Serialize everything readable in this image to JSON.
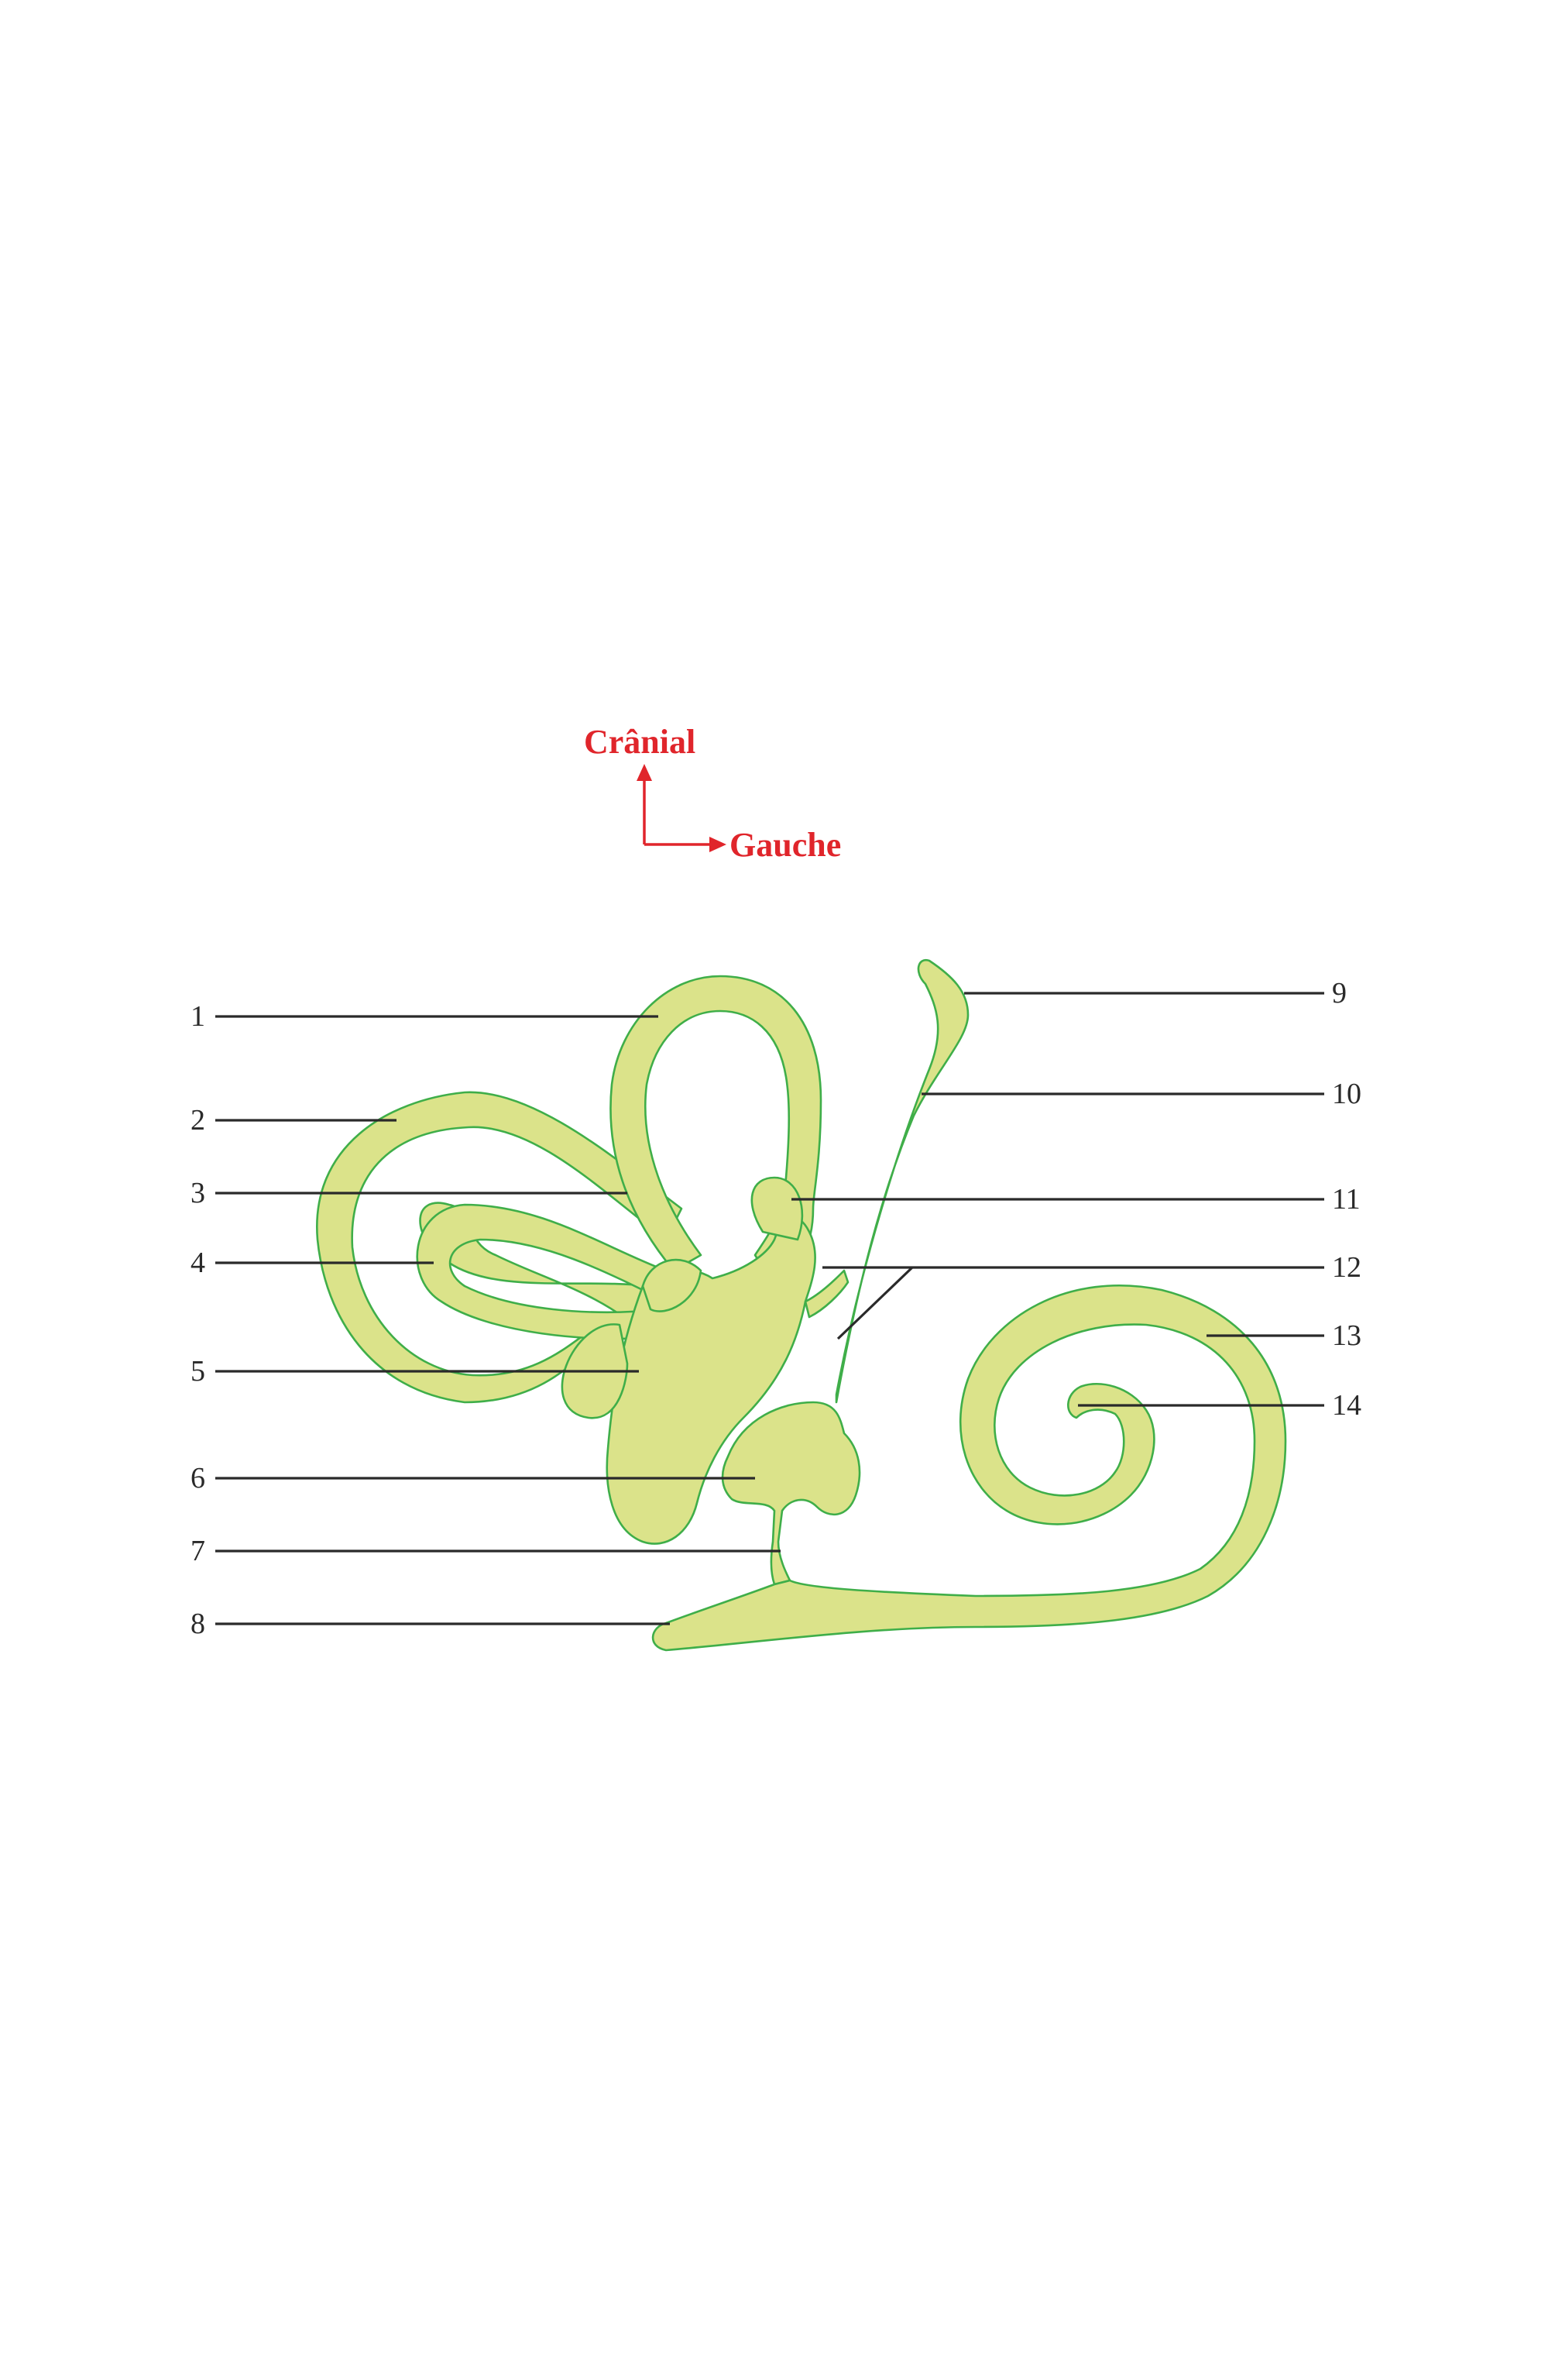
{
  "colors": {
    "fill": "#dbe38a",
    "outline": "#3fae49",
    "orientation": "#e0252b",
    "leader": "#2a2a2a"
  },
  "orientation": {
    "up_label": "Crânial",
    "right_label": "Gauche"
  },
  "labels": [
    "1",
    "2",
    "3",
    "4",
    "5",
    "6",
    "7",
    "8",
    "9",
    "10",
    "11",
    "12",
    "13",
    "14"
  ]
}
